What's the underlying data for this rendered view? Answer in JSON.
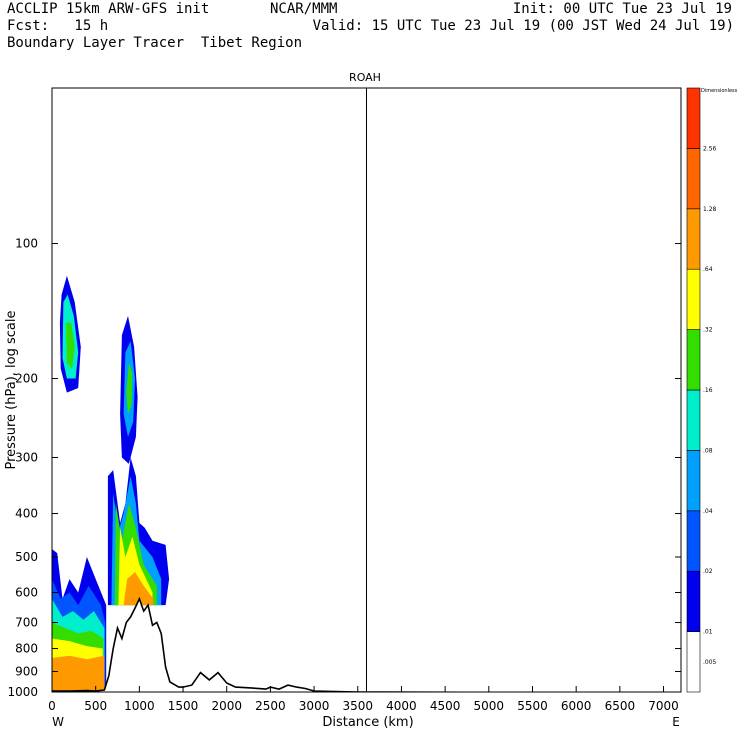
{
  "header": {
    "line1_left": "ACCLIP 15km ARW-GFS init",
    "line1_center": "NCAR/MMM",
    "line1_right": "Init: 00 UTC Tue 23 Jul 19",
    "line2_left": "Fcst:   15 h",
    "line2_right": "Valid: 15 UTC Tue 23 Jul 19 (00 JST Wed 24 Jul 19)",
    "line3": "Boundary Layer Tracer  Tibet Region"
  },
  "chart_data": {
    "type": "contour_cross_section",
    "title": "ROAH",
    "xlabel": "Distance (km)",
    "ylabel": "Pressure (hPa), log scale",
    "x_start_label": "W",
    "x_end_label": "E",
    "xlim": [
      0,
      7200
    ],
    "ylim": [
      1000,
      45
    ],
    "y_scale": "log",
    "x_ticks": [
      0,
      500,
      1000,
      1500,
      2000,
      2500,
      3000,
      3500,
      4000,
      4500,
      5000,
      5500,
      6000,
      6500,
      7000
    ],
    "y_ticks": [
      100,
      200,
      300,
      400,
      500,
      600,
      700,
      800,
      900,
      1000
    ],
    "station_marker": {
      "label": "ROAH",
      "x": 3600
    },
    "colorbar": {
      "title": "Dimensionless",
      "labels": [
        ".005",
        ".01",
        ".02",
        ".04",
        ".08",
        ".16",
        ".32",
        ".64",
        "1.28",
        "2.56"
      ],
      "colors": [
        "#ffffff",
        "#0000ee",
        "#0055ff",
        "#00a0ff",
        "#00eecc",
        "#33dd00",
        "#ffff00",
        "#ff9900",
        "#ff6600",
        "#ff3300"
      ]
    },
    "terrain_pressure": [
      [
        0,
        995
      ],
      [
        200,
        995
      ],
      [
        400,
        993
      ],
      [
        500,
        995
      ],
      [
        600,
        990
      ],
      [
        650,
        920
      ],
      [
        700,
        800
      ],
      [
        750,
        720
      ],
      [
        800,
        760
      ],
      [
        850,
        700
      ],
      [
        900,
        680
      ],
      [
        950,
        650
      ],
      [
        1000,
        620
      ],
      [
        1050,
        660
      ],
      [
        1100,
        640
      ],
      [
        1150,
        710
      ],
      [
        1200,
        700
      ],
      [
        1250,
        740
      ],
      [
        1300,
        880
      ],
      [
        1350,
        950
      ],
      [
        1450,
        975
      ],
      [
        1500,
        975
      ],
      [
        1600,
        965
      ],
      [
        1700,
        905
      ],
      [
        1800,
        940
      ],
      [
        1900,
        905
      ],
      [
        2000,
        955
      ],
      [
        2100,
        975
      ],
      [
        2300,
        980
      ],
      [
        2450,
        985
      ],
      [
        2500,
        975
      ],
      [
        2600,
        985
      ],
      [
        2700,
        965
      ],
      [
        2800,
        975
      ],
      [
        2900,
        982
      ],
      [
        3000,
        995
      ],
      [
        3500,
        1000
      ],
      [
        7200,
        1005
      ]
    ],
    "tracer_regions": [
      {
        "level": ".64",
        "x_range": [
          0,
          650
        ],
        "p_range": [
          840,
          995
        ]
      },
      {
        "level": ".16-.32",
        "x_range": [
          0,
          650
        ],
        "p_range": [
          650,
          840
        ]
      },
      {
        "level": ".01-.04",
        "x_range": [
          0,
          650
        ],
        "p_range": [
          480,
          800
        ]
      },
      {
        "level": ".04-.32",
        "x_range": [
          100,
          350
        ],
        "p_range": [
          125,
          195
        ]
      },
      {
        "level": ".64",
        "x_range": [
          850,
          1150
        ],
        "p_range": [
          550,
          640
        ]
      },
      {
        "level": ".04-.32",
        "x_range": [
          700,
          1300
        ],
        "p_range": [
          330,
          640
        ]
      },
      {
        "level": ".01-.16",
        "x_range": [
          800,
          1050
        ],
        "p_range": [
          145,
          270
        ]
      }
    ]
  }
}
